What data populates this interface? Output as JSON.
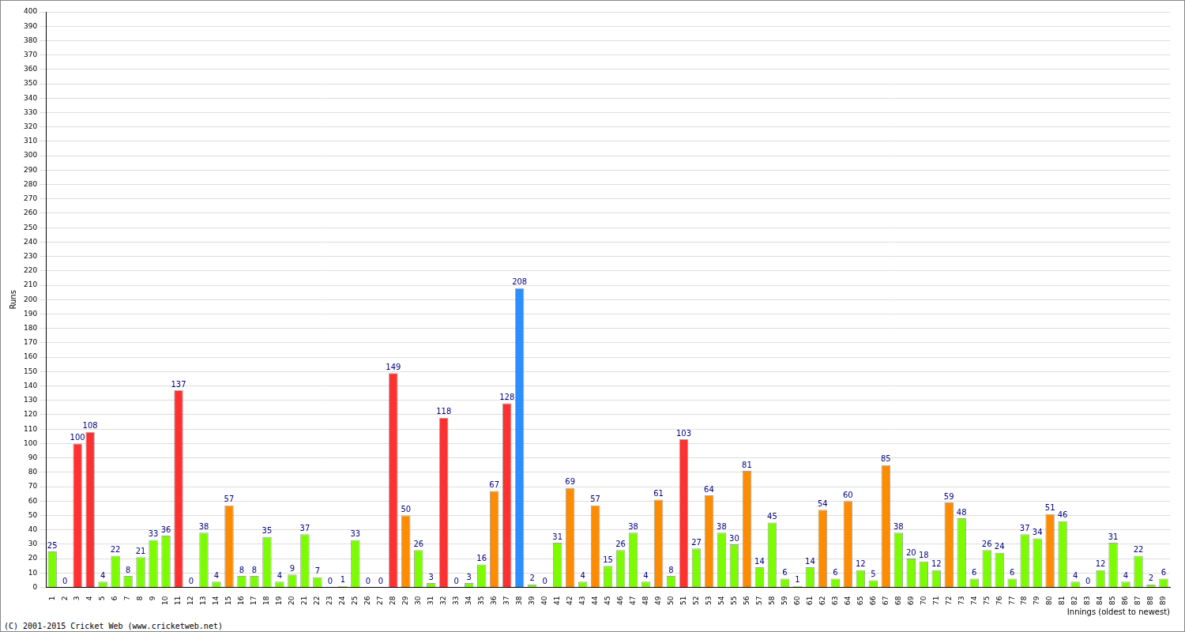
{
  "chart_data": {
    "type": "bar",
    "x_label": "Innings (oldest to newest)",
    "y_label": "Runs",
    "annotations": [
      "(C) 2001-2015 Cricket Web (www.cricketweb.net)"
    ],
    "categories": [
      "1",
      "2",
      "3",
      "4",
      "5",
      "6",
      "7",
      "8",
      "9",
      "10",
      "11",
      "12",
      "13",
      "14",
      "15",
      "16",
      "17",
      "18",
      "19",
      "20",
      "21",
      "22",
      "23",
      "24",
      "25",
      "26",
      "27",
      "28",
      "29",
      "30",
      "31",
      "32",
      "33",
      "34",
      "35",
      "36",
      "37",
      "38",
      "39",
      "40",
      "41",
      "42",
      "43",
      "44",
      "45",
      "46",
      "47",
      "48",
      "49",
      "50",
      "51",
      "52",
      "53",
      "54",
      "55",
      "56",
      "57",
      "58",
      "59",
      "60",
      "61",
      "62",
      "63",
      "64",
      "65",
      "66",
      "67",
      "68",
      "69",
      "70",
      "71",
      "72",
      "73",
      "74",
      "75",
      "76",
      "77",
      "78",
      "79",
      "80",
      "81",
      "82",
      "83",
      "84",
      "85",
      "86",
      "87",
      "88",
      "89"
    ],
    "values": [
      25,
      0,
      100,
      108,
      4,
      22,
      8,
      21,
      33,
      36,
      137,
      0,
      38,
      4,
      57,
      8,
      8,
      35,
      4,
      9,
      37,
      7,
      0,
      1,
      33,
      0,
      0,
      149,
      50,
      26,
      3,
      118,
      0,
      3,
      16,
      67,
      128,
      208,
      2,
      0,
      31,
      69,
      4,
      57,
      15,
      26,
      38,
      4,
      61,
      8,
      103,
      27,
      64,
      38,
      30,
      81,
      14,
      45,
      6,
      1,
      14,
      54,
      6,
      60,
      12,
      5,
      85,
      38,
      20,
      18,
      12,
      59,
      48,
      6,
      26,
      24,
      6,
      37,
      34,
      51,
      46,
      4,
      0,
      12,
      31,
      4,
      22,
      2,
      6
    ],
    "colors": [
      "#7cfc00",
      "#7cfc00",
      "#ff3030",
      "#ff3030",
      "#7cfc00",
      "#7cfc00",
      "#7cfc00",
      "#7cfc00",
      "#7cfc00",
      "#7cfc00",
      "#ff3030",
      "#7cfc00",
      "#7cfc00",
      "#7cfc00",
      "#ff8c00",
      "#7cfc00",
      "#7cfc00",
      "#7cfc00",
      "#7cfc00",
      "#7cfc00",
      "#7cfc00",
      "#7cfc00",
      "#7cfc00",
      "#7cfc00",
      "#7cfc00",
      "#7cfc00",
      "#7cfc00",
      "#ff3030",
      "#ff8c00",
      "#7cfc00",
      "#7cfc00",
      "#ff3030",
      "#7cfc00",
      "#7cfc00",
      "#7cfc00",
      "#ff8c00",
      "#ff3030",
      "#2b8fff",
      "#7cfc00",
      "#7cfc00",
      "#7cfc00",
      "#ff8c00",
      "#7cfc00",
      "#ff8c00",
      "#7cfc00",
      "#7cfc00",
      "#7cfc00",
      "#7cfc00",
      "#ff8c00",
      "#7cfc00",
      "#ff3030",
      "#7cfc00",
      "#ff8c00",
      "#7cfc00",
      "#7cfc00",
      "#ff8c00",
      "#7cfc00",
      "#7cfc00",
      "#7cfc00",
      "#7cfc00",
      "#7cfc00",
      "#ff8c00",
      "#7cfc00",
      "#ff8c00",
      "#7cfc00",
      "#7cfc00",
      "#ff8c00",
      "#7cfc00",
      "#7cfc00",
      "#7cfc00",
      "#7cfc00",
      "#ff8c00",
      "#7cfc00",
      "#7cfc00",
      "#7cfc00",
      "#7cfc00",
      "#7cfc00",
      "#7cfc00",
      "#7cfc00",
      "#ff8c00",
      "#7cfc00",
      "#7cfc00",
      "#7cfc00",
      "#7cfc00",
      "#7cfc00",
      "#7cfc00",
      "#7cfc00",
      "#7cfc00",
      "#7cfc00"
    ],
    "ylim": [
      0,
      400
    ],
    "yticks": [
      0,
      10,
      20,
      30,
      40,
      50,
      60,
      70,
      80,
      90,
      100,
      110,
      120,
      130,
      140,
      150,
      160,
      170,
      180,
      190,
      200,
      210,
      220,
      230,
      240,
      250,
      260,
      270,
      280,
      290,
      300,
      310,
      320,
      330,
      340,
      350,
      360,
      370,
      380,
      390,
      400
    ],
    "grid": true,
    "data_labels": true,
    "legend": false
  }
}
